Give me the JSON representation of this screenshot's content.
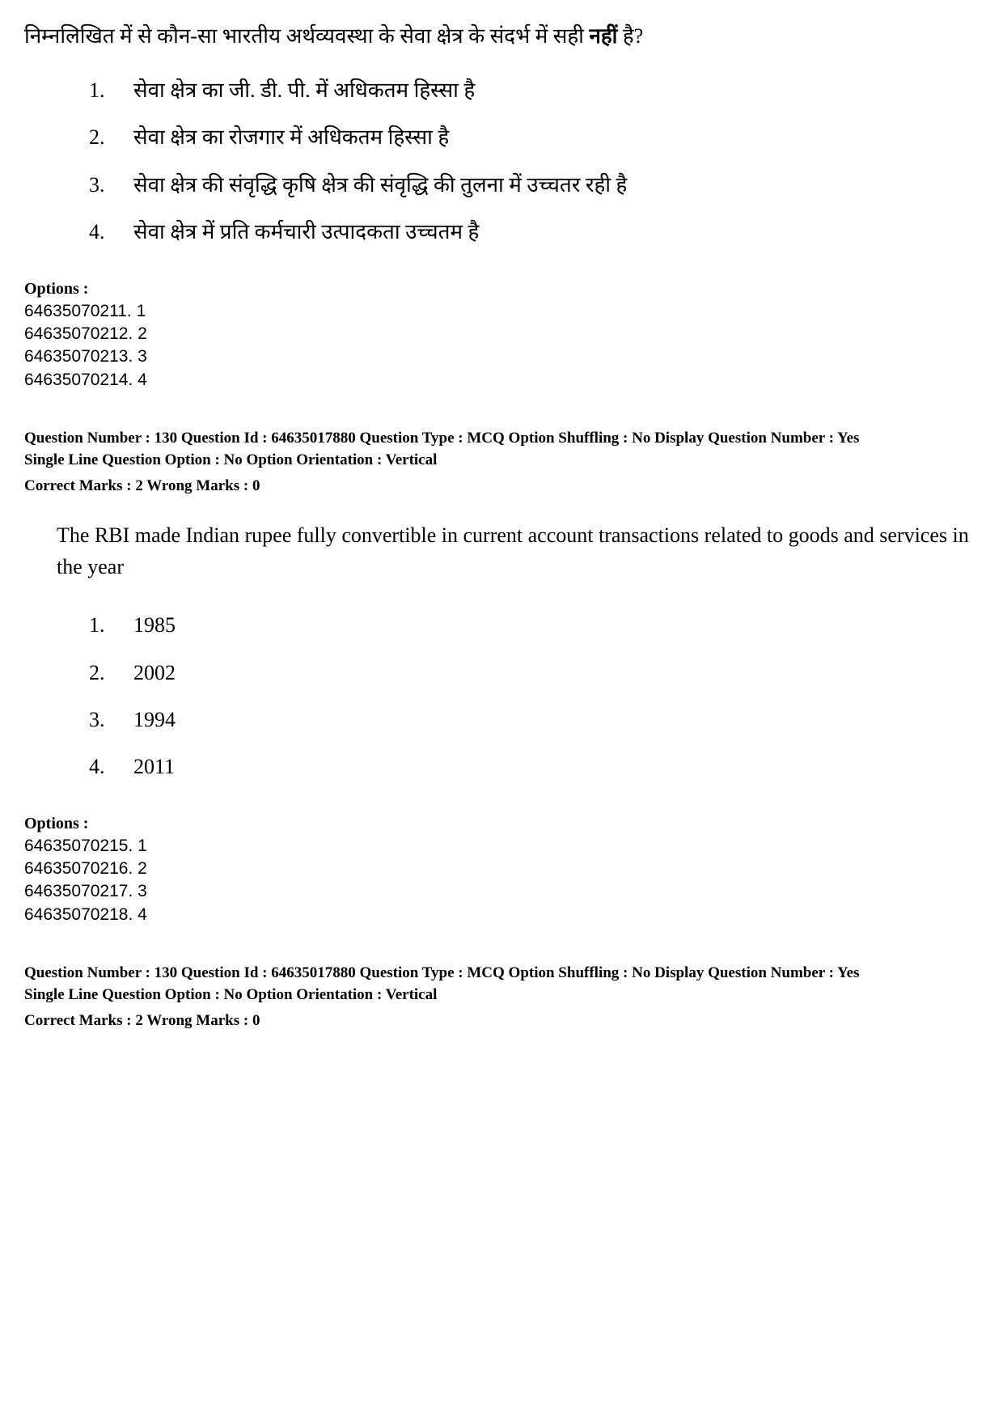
{
  "q1": {
    "stem": "निम्नलिखित में से कौन-सा भारतीय अर्थव्यवस्था के सेवा क्षेत्र के संदर्भ में सही ",
    "stem_bold": "नहीं",
    "stem_end": " है?",
    "items": [
      {
        "n": "1.",
        "t": "सेवा क्षेत्र का जी. डी. पी. में अधिकतम हिस्सा है"
      },
      {
        "n": "2.",
        "t": "सेवा क्षेत्र का रोजगार में अधिकतम हिस्सा है"
      },
      {
        "n": "3.",
        "t": "सेवा क्षेत्र की संवृद्धि कृषि क्षेत्र की संवृद्धि की तुलना में उच्चतर रही है"
      },
      {
        "n": "4.",
        "t": "सेवा क्षेत्र में प्रति कर्मचारी उत्पादकता उच्चतम है"
      }
    ],
    "options_label": "Options :",
    "options": [
      "64635070211. 1",
      "64635070212. 2",
      "64635070213. 3",
      "64635070214. 4"
    ]
  },
  "meta1": {
    "line1": "Question Number : 130  Question Id : 64635017880  Question Type : MCQ  Option Shuffling : No  Display Question Number : Yes",
    "line2": "Single Line Question Option : No  Option Orientation : Vertical",
    "marks": "Correct Marks : 2  Wrong Marks : 0"
  },
  "q2": {
    "stem": "The RBI made Indian rupee fully convertible in current account transactions related to goods and services in the year",
    "items": [
      {
        "n": "1.",
        "t": "1985"
      },
      {
        "n": "2.",
        "t": "2002"
      },
      {
        "n": "3.",
        "t": "1994"
      },
      {
        "n": "4.",
        "t": "2011"
      }
    ],
    "options_label": "Options :",
    "options": [
      "64635070215. 1",
      "64635070216. 2",
      "64635070217. 3",
      "64635070218. 4"
    ]
  },
  "meta2": {
    "line1": "Question Number : 130  Question Id : 64635017880  Question Type : MCQ  Option Shuffling : No  Display Question Number : Yes",
    "line2": "Single Line Question Option : No  Option Orientation : Vertical",
    "marks": "Correct Marks : 2  Wrong Marks : 0"
  }
}
